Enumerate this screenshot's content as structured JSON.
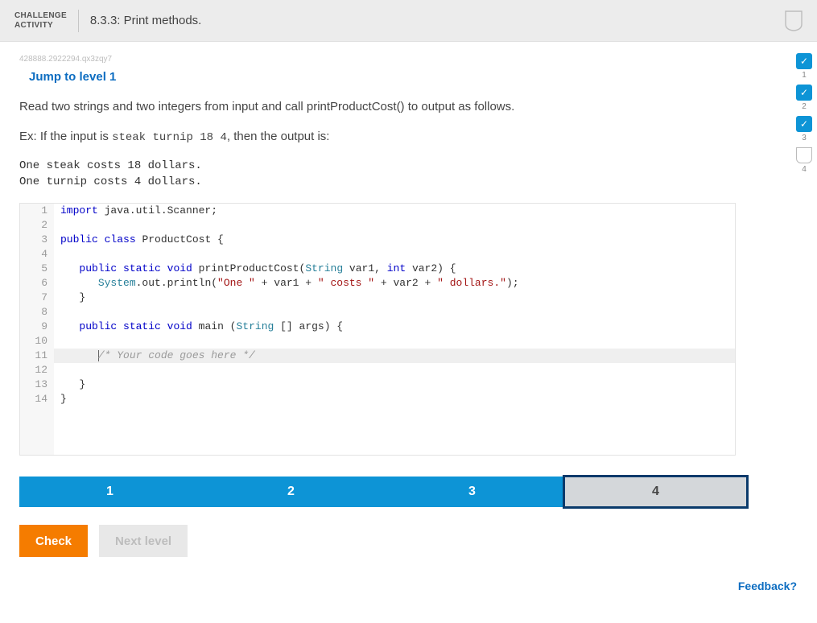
{
  "colors": {
    "accent_blue": "#0d94d6",
    "dark_blue": "#0a3a6b",
    "link_blue": "#0d6dc1",
    "orange": "#f57c00",
    "header_bg": "#ececec",
    "gutter_bg": "#f7f7f7",
    "hl_bg": "#efefef",
    "border": "#e3e3e3",
    "code_keyword": "#0000c8",
    "code_type": "#267f99",
    "code_string": "#a31515",
    "code_comment": "#9a9a9a"
  },
  "header": {
    "badge": "CHALLENGE\nACTIVITY",
    "title": "8.3.3: Print methods."
  },
  "meta": {
    "qid": "428888.2922294.qx3zqy7"
  },
  "jump_label": "Jump to level 1",
  "prompt": {
    "p1": "Read two strings and two integers from input and call printProductCost() to output as follows.",
    "p2a": "Ex: If the input is ",
    "p2_code": "steak turnip 18 4",
    "p2b": ", then the output is:",
    "sample_output": "One steak costs 18 dollars.\nOne turnip costs 4 dollars."
  },
  "code": {
    "lines": [
      {
        "n": 1,
        "tokens": [
          [
            "kw",
            "import"
          ],
          [
            "",
            " java.util.Scanner;"
          ]
        ]
      },
      {
        "n": 2,
        "tokens": []
      },
      {
        "n": 3,
        "tokens": [
          [
            "kw",
            "public"
          ],
          [
            "",
            " "
          ],
          [
            "kw",
            "class"
          ],
          [
            "",
            " ProductCost {"
          ]
        ]
      },
      {
        "n": 4,
        "tokens": []
      },
      {
        "n": 5,
        "tokens": [
          [
            "",
            "   "
          ],
          [
            "kw",
            "public"
          ],
          [
            "",
            " "
          ],
          [
            "kw",
            "static"
          ],
          [
            "",
            " "
          ],
          [
            "kw",
            "void"
          ],
          [
            "",
            " printProductCost("
          ],
          [
            "type",
            "String"
          ],
          [
            "",
            " var1, "
          ],
          [
            "kw",
            "int"
          ],
          [
            "",
            " var2) {"
          ]
        ]
      },
      {
        "n": 6,
        "tokens": [
          [
            "",
            "      "
          ],
          [
            "type",
            "System"
          ],
          [
            "",
            ".out.println("
          ],
          [
            "str",
            "\"One \""
          ],
          [
            "",
            " + var1 + "
          ],
          [
            "str",
            "\" costs \""
          ],
          [
            "",
            " + var2 + "
          ],
          [
            "str",
            "\" dollars.\""
          ],
          [
            "",
            ");"
          ]
        ]
      },
      {
        "n": 7,
        "tokens": [
          [
            "",
            "   }"
          ]
        ]
      },
      {
        "n": 8,
        "tokens": []
      },
      {
        "n": 9,
        "tokens": [
          [
            "",
            "   "
          ],
          [
            "kw",
            "public"
          ],
          [
            "",
            " "
          ],
          [
            "kw",
            "static"
          ],
          [
            "",
            " "
          ],
          [
            "kw",
            "void"
          ],
          [
            "",
            " main ("
          ],
          [
            "type",
            "String"
          ],
          [
            "",
            " [] args) {"
          ]
        ]
      },
      {
        "n": 10,
        "tokens": []
      },
      {
        "n": 11,
        "hl": true,
        "cursor": true,
        "tokens": [
          [
            "",
            "      "
          ],
          [
            "cmt",
            "/* Your code goes here */"
          ]
        ]
      },
      {
        "n": 12,
        "tokens": []
      },
      {
        "n": 13,
        "tokens": [
          [
            "",
            "   }"
          ]
        ]
      },
      {
        "n": 14,
        "tokens": [
          [
            "",
            "}"
          ]
        ]
      }
    ]
  },
  "levels": {
    "items": [
      {
        "n": "1",
        "state": "done"
      },
      {
        "n": "2",
        "state": "done"
      },
      {
        "n": "3",
        "state": "done"
      },
      {
        "n": "4",
        "state": "current"
      }
    ]
  },
  "buttons": {
    "check": "Check",
    "next": "Next level"
  },
  "progress_rail": [
    {
      "n": "1",
      "state": "done"
    },
    {
      "n": "2",
      "state": "done"
    },
    {
      "n": "3",
      "state": "done"
    },
    {
      "n": "4",
      "state": "current"
    }
  ],
  "feedback_label": "Feedback?"
}
